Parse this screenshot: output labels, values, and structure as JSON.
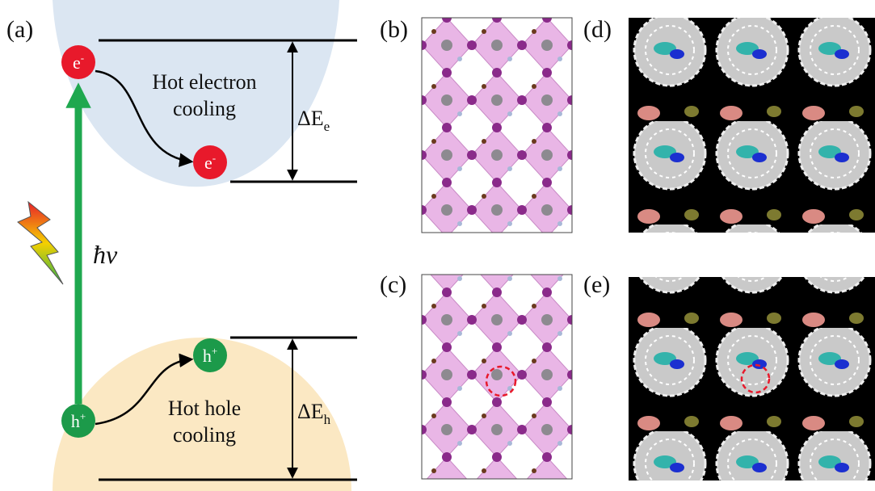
{
  "panels": {
    "a": {
      "label": "(a)",
      "electron_top": {
        "base": "e",
        "sup": "-"
      },
      "electron_bottom": {
        "base": "e",
        "sup": "-"
      },
      "hole_top": {
        "base": "h",
        "sup": "+"
      },
      "hole_bottom": {
        "base": "h",
        "sup": "+"
      },
      "electron_cooling": [
        "Hot electron",
        "cooling"
      ],
      "hole_cooling": [
        "Hot hole",
        "cooling"
      ],
      "delta_e": {
        "main": "ΔE",
        "sub": "e"
      },
      "delta_h": {
        "main": "ΔE",
        "sub": "h"
      },
      "photon": "ħv"
    },
    "b": {
      "label": "(b)"
    },
    "c": {
      "label": "(c)"
    },
    "d": {
      "label": "(d)"
    },
    "e": {
      "label": "(e)"
    }
  }
}
